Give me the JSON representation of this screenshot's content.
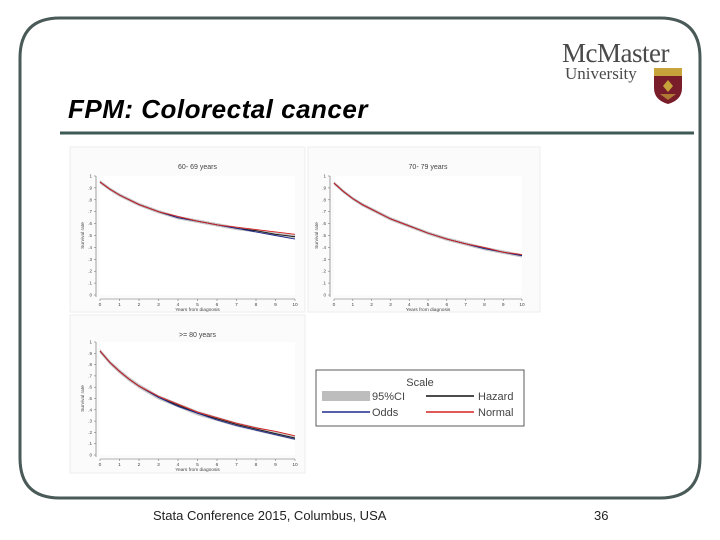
{
  "slide": {
    "title": "FPM: Colorectal cancer",
    "logo_name": "McMaster",
    "logo_sub": "University",
    "footer": "Stata Conference 2015, Columbus, USA",
    "page_number": "36"
  },
  "colors": {
    "frame": "#4a5a58",
    "rule": "#3d5a55",
    "ci": "#bdbdbd",
    "hazard": "#111111",
    "odds": "#1f2a8c",
    "normal": "#d62020"
  },
  "chart_data": [
    {
      "type": "line",
      "title": "60- 69 years",
      "xlabel": "Years from diagnosis",
      "ylabel": "Survival rate",
      "xlim": [
        0,
        10
      ],
      "ylim": [
        0,
        1
      ],
      "xticks": [
        "0",
        "1",
        "2",
        "3",
        "4",
        "5",
        "6",
        "7",
        "8",
        "9",
        "10"
      ],
      "yticks": [
        "0",
        ".1",
        ".2",
        ".3",
        ".4",
        ".5",
        ".6",
        ".7",
        ".8",
        ".9",
        "1"
      ],
      "x": [
        0,
        0.5,
        1,
        1.5,
        2,
        3,
        4,
        5,
        6,
        7,
        8,
        9,
        10
      ],
      "series": [
        {
          "name": "Hazard",
          "values": [
            0.95,
            0.89,
            0.84,
            0.8,
            0.76,
            0.7,
            0.65,
            0.62,
            0.59,
            0.56,
            0.54,
            0.51,
            0.49
          ]
        },
        {
          "name": "Odds",
          "values": [
            0.95,
            0.89,
            0.84,
            0.8,
            0.76,
            0.7,
            0.65,
            0.62,
            0.59,
            0.56,
            0.53,
            0.5,
            0.47
          ]
        },
        {
          "name": "Normal",
          "values": [
            0.95,
            0.89,
            0.84,
            0.8,
            0.76,
            0.7,
            0.66,
            0.62,
            0.59,
            0.57,
            0.55,
            0.53,
            0.51
          ]
        }
      ],
      "ci_width": 0.015
    },
    {
      "type": "line",
      "title": "70- 79 years",
      "xlabel": "Years from diagnosis",
      "ylabel": "Survival rate",
      "xlim": [
        0,
        10
      ],
      "ylim": [
        0,
        1
      ],
      "xticks": [
        "0",
        "1",
        "2",
        "3",
        "4",
        "5",
        "6",
        "7",
        "8",
        "9",
        "10"
      ],
      "yticks": [
        "0",
        ".1",
        ".2",
        ".3",
        ".4",
        ".5",
        ".6",
        ".7",
        ".8",
        ".9",
        "1"
      ],
      "x": [
        0,
        0.5,
        1,
        1.5,
        2,
        3,
        4,
        5,
        6,
        7,
        8,
        9,
        10
      ],
      "series": [
        {
          "name": "Hazard",
          "values": [
            0.94,
            0.87,
            0.81,
            0.76,
            0.72,
            0.64,
            0.58,
            0.52,
            0.47,
            0.43,
            0.39,
            0.36,
            0.33
          ]
        },
        {
          "name": "Odds",
          "values": [
            0.94,
            0.87,
            0.81,
            0.76,
            0.72,
            0.64,
            0.58,
            0.52,
            0.47,
            0.43,
            0.39,
            0.36,
            0.33
          ]
        },
        {
          "name": "Normal",
          "values": [
            0.94,
            0.87,
            0.81,
            0.76,
            0.72,
            0.64,
            0.58,
            0.52,
            0.47,
            0.43,
            0.4,
            0.36,
            0.34
          ]
        }
      ],
      "ci_width": 0.015
    },
    {
      "type": "line",
      "title": ">= 80 years",
      "xlabel": "Years from diagnosis",
      "ylabel": "Survival rate",
      "xlim": [
        0,
        10
      ],
      "ylim": [
        0,
        1
      ],
      "xticks": [
        "0",
        "1",
        "2",
        "3",
        "4",
        "5",
        "6",
        "7",
        "8",
        "9",
        "10"
      ],
      "yticks": [
        "0",
        ".1",
        ".2",
        ".3",
        ".4",
        ".5",
        ".6",
        ".7",
        ".8",
        ".9",
        "1"
      ],
      "x": [
        0,
        0.5,
        1,
        1.5,
        2,
        3,
        4,
        5,
        6,
        7,
        8,
        9,
        10
      ],
      "series": [
        {
          "name": "Hazard",
          "values": [
            0.92,
            0.82,
            0.74,
            0.67,
            0.61,
            0.51,
            0.44,
            0.37,
            0.32,
            0.27,
            0.23,
            0.19,
            0.15
          ]
        },
        {
          "name": "Odds",
          "values": [
            0.92,
            0.82,
            0.74,
            0.67,
            0.61,
            0.51,
            0.43,
            0.37,
            0.31,
            0.26,
            0.22,
            0.18,
            0.14
          ]
        },
        {
          "name": "Normal",
          "values": [
            0.92,
            0.82,
            0.74,
            0.67,
            0.61,
            0.52,
            0.45,
            0.38,
            0.33,
            0.28,
            0.24,
            0.21,
            0.17
          ]
        }
      ],
      "ci_width": 0.02
    }
  ],
  "legend": {
    "title": "Scale",
    "entries": [
      {
        "label": "95%CI",
        "color": "#bdbdbd",
        "kind": "band"
      },
      {
        "label": "Hazard",
        "color": "#111111",
        "kind": "line"
      },
      {
        "label": "Odds",
        "color": "#1f2a8c",
        "kind": "line"
      },
      {
        "label": "Normal",
        "color": "#d62020",
        "kind": "line"
      }
    ]
  }
}
